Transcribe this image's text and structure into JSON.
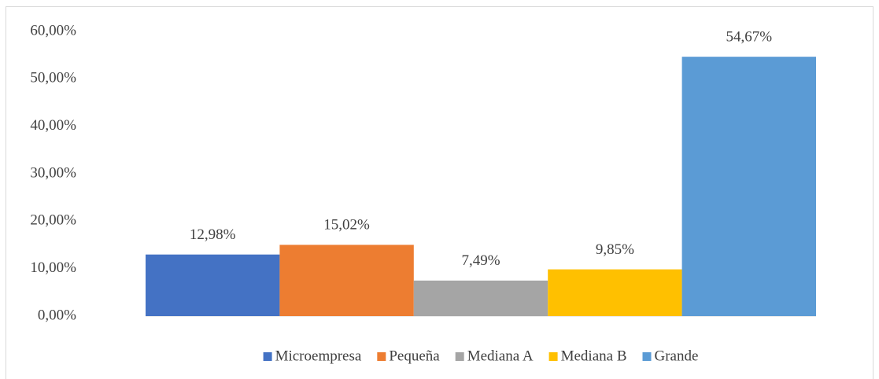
{
  "chart_data": {
    "type": "bar",
    "categories": [
      null
    ],
    "series": [
      {
        "name": "Microempresa",
        "color": "#4472c4",
        "values": [
          12.98
        ],
        "value_labels": [
          "12,98%"
        ]
      },
      {
        "name": "Pequeña",
        "color": "#ed7d31",
        "values": [
          15.02
        ],
        "value_labels": [
          "15,02%"
        ]
      },
      {
        "name": "Mediana A",
        "color": "#a5a5a5",
        "values": [
          7.49
        ],
        "value_labels": [
          "7,49%"
        ]
      },
      {
        "name": "Mediana B",
        "color": "#ffc000",
        "values": [
          9.85
        ],
        "value_labels": [
          "9,85%"
        ]
      },
      {
        "name": "Grande",
        "color": "#5b9bd5",
        "values": [
          54.67
        ],
        "value_labels": [
          "54,67%"
        ]
      }
    ],
    "ylim": [
      0,
      60
    ],
    "yticks": [
      {
        "value": 0,
        "label": "0,00%"
      },
      {
        "value": 10,
        "label": "10,00%"
      },
      {
        "value": 20,
        "label": "20,00%"
      },
      {
        "value": 30,
        "label": "30,00%"
      },
      {
        "value": 40,
        "label": "40,00%"
      },
      {
        "value": 50,
        "label": "50,00%"
      },
      {
        "value": 60,
        "label": "60,00%"
      }
    ],
    "grid": false,
    "legend": "bottom"
  }
}
